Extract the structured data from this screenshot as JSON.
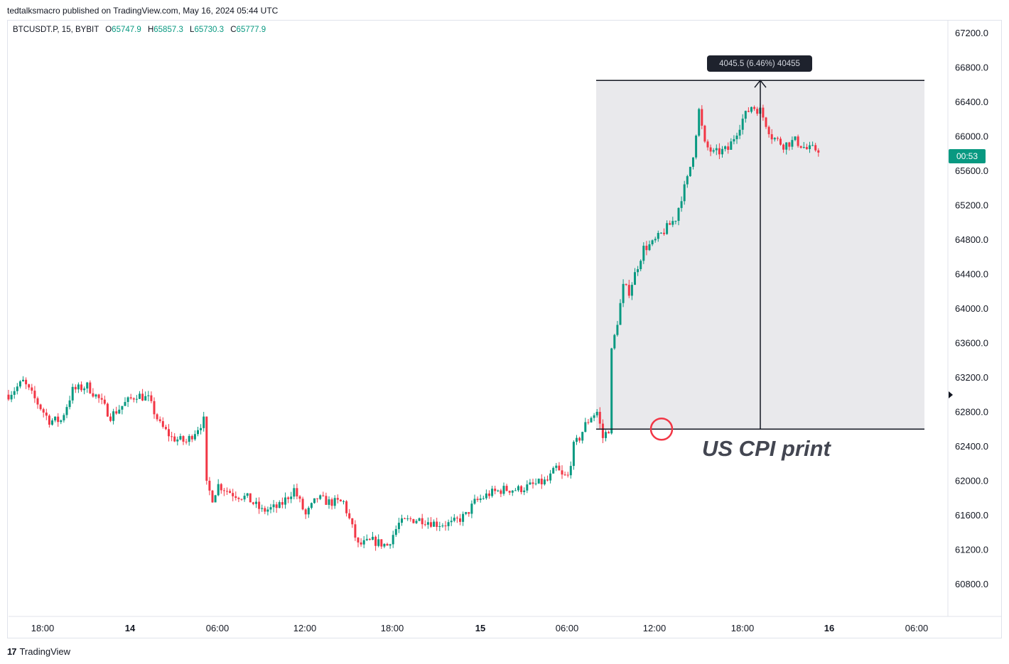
{
  "publisher_line": "tedtalksmacro published on TradingView.com, May 16, 2024 05:44 UTC",
  "symbol": {
    "name": "BTCUSDT.P, 15, BYBIT",
    "open_label": "O",
    "open": "65747.9",
    "high_label": "H",
    "high": "65857.3",
    "low_label": "L",
    "low": "65730.3",
    "close_label": "C",
    "close": "65777.9"
  },
  "measure": {
    "label": "4045.5 (6.46%) 40455"
  },
  "annotation": "US CPI print",
  "price_badge": "00:53",
  "footer": {
    "brand": "TradingView"
  },
  "colors": {
    "up": "#089981",
    "down": "#f23645",
    "range_fill": "#e9e9ec",
    "badge": "#089981",
    "circle": "#f23645"
  },
  "chart_data": {
    "type": "candlestick",
    "y_axis": {
      "ticks": [
        "67200.0",
        "66800.0",
        "66400.0",
        "66000.0",
        "65600.0",
        "65200.0",
        "64800.0",
        "64400.0",
        "64000.0",
        "63600.0",
        "63200.0",
        "62800.0",
        "62400.0",
        "62000.0",
        "61600.0",
        "61200.0",
        "60800.0"
      ],
      "range": [
        60500,
        67450
      ]
    },
    "x_axis": {
      "ticks": [
        {
          "label": "18:00",
          "bold": false
        },
        {
          "label": "14",
          "bold": true
        },
        {
          "label": "06:00",
          "bold": false
        },
        {
          "label": "12:00",
          "bold": false
        },
        {
          "label": "18:00",
          "bold": false
        },
        {
          "label": "15",
          "bold": true
        },
        {
          "label": "06:00",
          "bold": false
        },
        {
          "label": "12:00",
          "bold": false
        },
        {
          "label": "18:00",
          "bold": false
        },
        {
          "label": "16",
          "bold": true
        },
        {
          "label": "06:00",
          "bold": false
        }
      ]
    },
    "measure_range": {
      "low": 62600,
      "high": 66650
    },
    "cpi_release_price": 62600,
    "anchors": [
      [
        0,
        63000
      ],
      [
        5,
        63150
      ],
      [
        10,
        62900
      ],
      [
        14,
        62700
      ],
      [
        18,
        62700
      ],
      [
        22,
        63050
      ],
      [
        27,
        63100
      ],
      [
        31,
        62950
      ],
      [
        35,
        62750
      ],
      [
        40,
        62900
      ],
      [
        44,
        63000
      ],
      [
        48,
        62950
      ],
      [
        52,
        62650
      ],
      [
        56,
        62500
      ],
      [
        61,
        62450
      ],
      [
        67,
        62700
      ],
      [
        68,
        61950
      ],
      [
        70,
        61800
      ],
      [
        72,
        61950
      ],
      [
        77,
        61850
      ],
      [
        82,
        61800
      ],
      [
        87,
        61650
      ],
      [
        93,
        61700
      ],
      [
        98,
        61900
      ],
      [
        102,
        61600
      ],
      [
        106,
        61800
      ],
      [
        110,
        61750
      ],
      [
        115,
        61750
      ],
      [
        120,
        61250
      ],
      [
        125,
        61300
      ],
      [
        130,
        61250
      ],
      [
        134,
        61500
      ],
      [
        138,
        61550
      ],
      [
        142,
        61550
      ],
      [
        147,
        61500
      ],
      [
        152,
        61500
      ],
      [
        157,
        61600
      ],
      [
        160,
        61750
      ],
      [
        165,
        61850
      ],
      [
        170,
        61900
      ],
      [
        175,
        61900
      ],
      [
        180,
        61950
      ],
      [
        185,
        62000
      ],
      [
        188,
        62150
      ],
      [
        190,
        62050
      ],
      [
        192,
        62050
      ],
      [
        194,
        62400
      ],
      [
        196,
        62500
      ],
      [
        198,
        62650
      ],
      [
        200,
        62750
      ],
      [
        202,
        62800
      ],
      [
        204,
        62500
      ],
      [
        206,
        62600
      ],
      [
        207,
        63500
      ],
      [
        209,
        63850
      ],
      [
        211,
        64250
      ],
      [
        213,
        64200
      ],
      [
        216,
        64500
      ],
      [
        218,
        64700
      ],
      [
        221,
        64750
      ],
      [
        225,
        64900
      ],
      [
        229,
        65050
      ],
      [
        231,
        65300
      ],
      [
        233,
        65500
      ],
      [
        235,
        65800
      ],
      [
        237,
        66300
      ],
      [
        239,
        65900
      ],
      [
        242,
        65800
      ],
      [
        247,
        65850
      ],
      [
        252,
        66200
      ],
      [
        255,
        66350
      ],
      [
        258,
        66300
      ],
      [
        262,
        66000
      ],
      [
        266,
        65900
      ],
      [
        270,
        65950
      ],
      [
        274,
        65850
      ],
      [
        278,
        65850
      ]
    ],
    "candle_count": 279
  }
}
